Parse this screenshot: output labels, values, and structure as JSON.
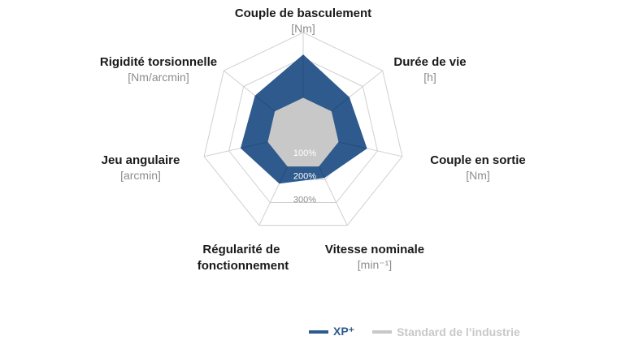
{
  "chart_data": {
    "type": "radar",
    "axes": [
      {
        "name": "Couple de basculement",
        "unit": "[Nm]"
      },
      {
        "name": "Durée de vie",
        "unit": "[h]"
      },
      {
        "name": "Couple en sortie",
        "unit": "[Nm]"
      },
      {
        "name": "Vitesse nominale",
        "unit": "[min⁻¹]"
      },
      {
        "name": "Régularité de fonctionnement",
        "unit": ""
      },
      {
        "name": "Jeu angulaire",
        "unit": "[arcmin]"
      },
      {
        "name": "Rigidité torsionnelle",
        "unit": "[Nm/arcmin]"
      }
    ],
    "ring_labels": [
      "100%",
      "200%",
      "300%"
    ],
    "ring_values": [
      100,
      200,
      300
    ],
    "range": [
      0,
      400
    ],
    "series": [
      {
        "name": "XP⁺",
        "color": "#2e5a8d",
        "values": [
          310,
          230,
          255,
          190,
          215,
          250,
          240
        ]
      },
      {
        "name": "Standard de l’industrie",
        "color": "#c8c8c8",
        "values": [
          140,
          140,
          140,
          140,
          140,
          140,
          140
        ]
      }
    ],
    "grid_color": "#d0d0d0",
    "legend_position": "bottom-right"
  }
}
